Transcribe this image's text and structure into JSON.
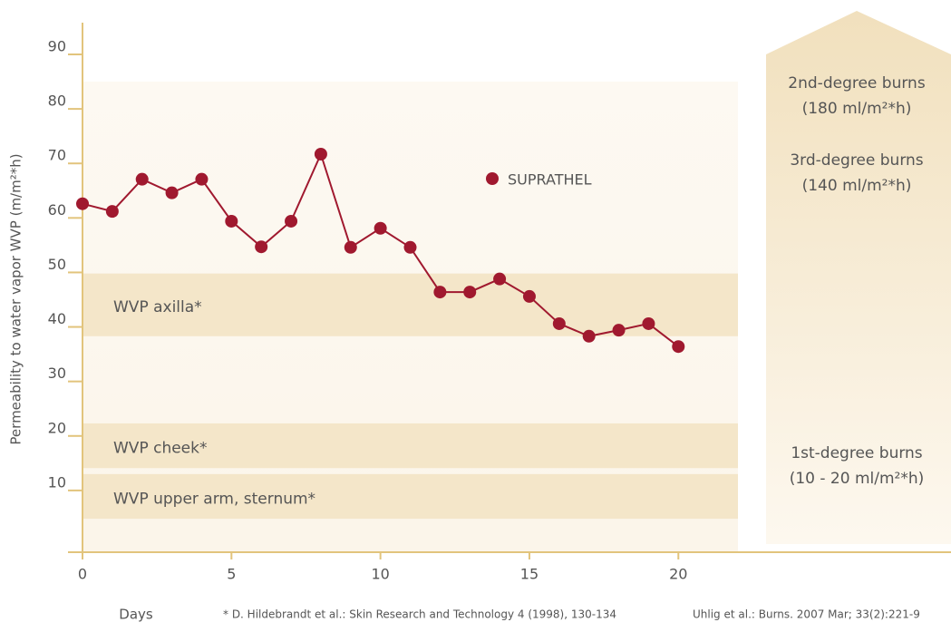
{
  "chart_data": {
    "type": "line",
    "y_label": "Permeability to water vapor WVP (m/m²*h)",
    "x_label": "Days",
    "x": [
      0,
      1,
      2,
      3,
      4,
      5,
      6,
      7,
      8,
      9,
      10,
      11,
      12,
      13,
      14,
      15,
      16,
      17,
      18,
      19,
      20
    ],
    "series": [
      {
        "name": "SUPRATHEL",
        "color": "#a0192f",
        "values": [
          62.6,
          61.2,
          67.1,
          64.6,
          67.1,
          59.4,
          54.7,
          59.4,
          71.7,
          54.6,
          58.1,
          54.6,
          46.4,
          46.4,
          48.8,
          45.6,
          40.6,
          38.3,
          39.4,
          40.6,
          36.4
        ]
      }
    ],
    "xlim": [
      0,
      22
    ],
    "xticks": [
      0,
      5,
      10,
      15,
      20
    ],
    "ylim": [
      0,
      90
    ],
    "yticks": [
      10,
      20,
      30,
      40,
      50,
      60,
      70,
      80,
      90
    ],
    "bands": [
      {
        "label": "WVP axilla*",
        "range": [
          38.3,
          49.8
        ]
      },
      {
        "label": "WVP cheek*",
        "range": [
          14.1,
          22.3
        ]
      },
      {
        "label": "WVP upper arm, sternum*",
        "range": [
          4.8,
          13
        ]
      }
    ],
    "arrow_labels": [
      "2nd-degree burns",
      "(180 ml/m²*h)",
      "3rd-degree burns",
      "(140 ml/m²*h)",
      "1st-degree burns",
      "(10 - 20 ml/m²*h)"
    ],
    "footnotes": [
      "* D. Hildebrandt et al.: Skin Research and Technology 4 (1998), 130-134",
      "Uhlig et al.: Burns. 2007 Mar; 33(2):221-9"
    ]
  }
}
